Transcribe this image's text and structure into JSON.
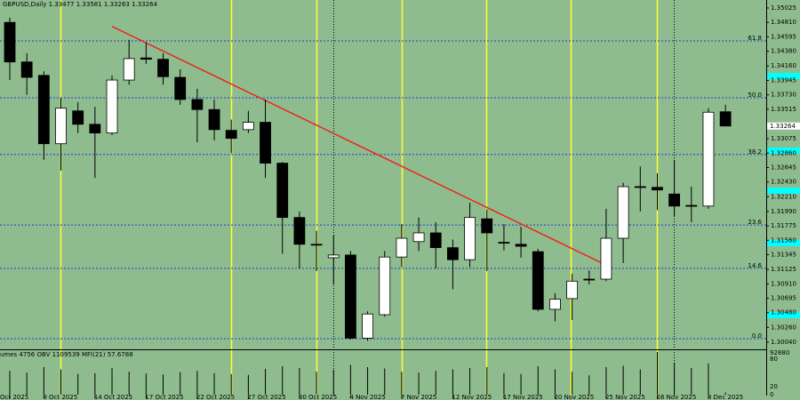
{
  "chart_data": {
    "type": "candlestick",
    "title": "GBPUSD,Daily  1.33477 1.33581 1.33263 1.33264",
    "categories": [
      "Oct 2025",
      null,
      "9 Oct 2025",
      null,
      null,
      "14 Oct 2025",
      null,
      null,
      "17 Oct 2025",
      null,
      null,
      "22 Oct 2025",
      null,
      null,
      "27 Oct 2025",
      null,
      null,
      "30 Oct 2025",
      null,
      null,
      "4 Nov 2025",
      null,
      null,
      "7 Nov 2025",
      null,
      null,
      "12 Nov 2025",
      null,
      null,
      "17 Nov 2025",
      null,
      null,
      "20 Nov 2025",
      null,
      null,
      "25 Nov 2025",
      null,
      null,
      "28 Nov 2025",
      null,
      null,
      "3 Dec 2025",
      null
    ],
    "open": [
      1.3481,
      1.3422,
      1.3402,
      1.33,
      1.3349,
      1.3329,
      1.3316,
      1.3395,
      1.3428,
      1.3426,
      1.3399,
      1.3366,
      1.3351,
      1.332,
      1.3321,
      1.3332,
      1.3271,
      1.319,
      1.315,
      1.313,
      1.3134,
      1.301,
      1.3045,
      1.3131,
      1.3154,
      1.3167,
      1.3145,
      1.3127,
      1.3188,
      1.3153,
      1.315,
      1.3139,
      1.3053,
      1.3069,
      1.3098,
      1.3098,
      1.3159,
      1.3236,
      1.3235,
      1.3225,
      1.3208,
      1.3207,
      1.33477
    ],
    "high": [
      1.3488,
      1.3435,
      1.3408,
      1.3368,
      1.3362,
      1.3355,
      1.3402,
      1.3455,
      1.3451,
      1.3435,
      1.3411,
      1.3382,
      1.3366,
      1.3336,
      1.3349,
      1.3366,
      1.3273,
      1.3199,
      1.317,
      1.3163,
      1.314,
      1.305,
      1.314,
      1.318,
      1.319,
      1.3183,
      1.3157,
      1.3212,
      1.3202,
      1.318,
      1.3176,
      1.3143,
      1.3077,
      1.3106,
      1.3111,
      1.3203,
      1.3242,
      1.3266,
      1.3256,
      1.3276,
      1.3236,
      1.3353,
      1.33581
    ],
    "low": [
      1.3395,
      1.3373,
      1.3276,
      1.326,
      1.3316,
      1.3249,
      1.3313,
      1.3388,
      1.3419,
      1.3388,
      1.3358,
      1.3302,
      1.3305,
      1.3286,
      1.3316,
      1.3249,
      1.3136,
      1.3114,
      1.311,
      1.309,
      1.3008,
      1.3006,
      1.3042,
      1.3116,
      1.314,
      1.3114,
      1.3083,
      1.3116,
      1.311,
      1.3141,
      1.313,
      1.305,
      1.3035,
      1.3037,
      1.309,
      1.3095,
      1.3122,
      1.3199,
      1.3201,
      1.3192,
      1.3183,
      1.3203,
      1.33263
    ],
    "close": [
      1.3422,
      1.3399,
      1.33,
      1.3353,
      1.3329,
      1.3316,
      1.3395,
      1.3427,
      1.3426,
      1.34,
      1.3366,
      1.3351,
      1.3321,
      1.3308,
      1.3332,
      1.3271,
      1.319,
      1.315,
      1.3149,
      1.3134,
      1.301,
      1.3046,
      1.3131,
      1.3159,
      1.3167,
      1.3145,
      1.3127,
      1.319,
      1.3167,
      1.3152,
      1.3147,
      1.3053,
      1.3068,
      1.3095,
      1.3097,
      1.3159,
      1.3236,
      1.3235,
      1.3231,
      1.3207,
      1.3207,
      1.3347,
      1.33264
    ],
    "up_color": "#ffffff",
    "down_color": "#000000",
    "background": "#8fbc8f",
    "ylim": [
      1.29933,
      1.35144
    ],
    "yticks": [
      1.35025,
      {
        "value": 1.3481,
        "label": "1.34810"
      },
      1.34595,
      {
        "value": 1.3438,
        "label": "1.34380"
      },
      {
        "value": 1.3416,
        "label": "1.34160"
      },
      1.33945,
      {
        "value": 1.3373,
        "label": "1.33730"
      },
      1.33515,
      1.33075,
      {
        "value": 1.3286,
        "label": "1.32860"
      },
      1.32645,
      {
        "value": 1.3243,
        "label": "1.32430"
      },
      {
        "value": 1.3221,
        "label": "1.32210"
      },
      {
        "value": 1.3199,
        "label": "1.31990"
      },
      1.31775,
      {
        "value": 1.3156,
        "label": "1.31560"
      },
      1.31345,
      1.31125,
      {
        "value": 1.3091,
        "label": "1.30910"
      },
      1.30695,
      {
        "value": 1.3048,
        "label": "1.30480"
      },
      {
        "value": 1.3026,
        "label": "1.30260"
      },
      {
        "value": 1.3004,
        "label": "1.30040"
      }
    ],
    "fib_levels": [
      {
        "value": 1.34534,
        "label": "61.8"
      },
      {
        "value": 1.33686,
        "label": "50.0"
      },
      {
        "value": 1.32838,
        "label": "38.2"
      },
      {
        "value": 1.31788,
        "label": "23.6"
      },
      {
        "value": 1.31141,
        "label": "14.6"
      },
      {
        "value": 1.30092,
        "label": "0.0"
      }
    ],
    "fib_color": "#1e3cc8",
    "trendline": {
      "color": "#e8281e",
      "points": [
        [
          6,
          1.3475
        ],
        [
          35,
          1.3119
        ]
      ]
    },
    "indicator_label": "umes 4756 OBV 1109539 MFI(21) 57.6788",
    "indicator_axis_labels": [
      92880,
      80,
      20,
      0
    ],
    "volumes": [
      52000,
      48000,
      60000,
      55000,
      45000,
      47000,
      58000,
      50000,
      46000,
      44000,
      49000,
      52000,
      47000,
      45000,
      43000,
      56000,
      62000,
      58000,
      50000,
      54000,
      65000,
      60000,
      57000,
      50000,
      48000,
      52000,
      55000,
      58000,
      60000,
      47000,
      45000,
      62000,
      55000,
      50000,
      42000,
      60000,
      63000,
      55000,
      92880,
      70000,
      58000,
      68000,
      4756
    ],
    "volume_ylim": [
      0,
      92880
    ]
  }
}
